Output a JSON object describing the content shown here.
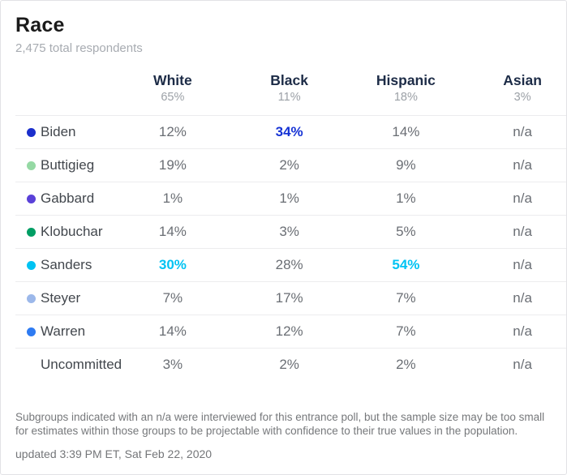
{
  "chart_data": {
    "type": "table",
    "title": "Race",
    "subtitle": "2,475 total respondents",
    "columns": [
      {
        "label": "White",
        "share": "65%"
      },
      {
        "label": "Black",
        "share": "11%"
      },
      {
        "label": "Hispanic",
        "share": "18%"
      },
      {
        "label": "Asian",
        "share": "3%"
      }
    ],
    "rows": [
      {
        "candidate": "Biden",
        "dot_color": "#1b2fcc",
        "values": [
          {
            "text": "12%"
          },
          {
            "text": "34%",
            "highlight": "#1633d5"
          },
          {
            "text": "14%"
          },
          {
            "text": "n/a"
          }
        ]
      },
      {
        "candidate": "Buttigieg",
        "dot_color": "#95d9a4",
        "values": [
          {
            "text": "19%"
          },
          {
            "text": "2%"
          },
          {
            "text": "9%"
          },
          {
            "text": "n/a"
          }
        ]
      },
      {
        "candidate": "Gabbard",
        "dot_color": "#5a41d8",
        "values": [
          {
            "text": "1%"
          },
          {
            "text": "1%"
          },
          {
            "text": "1%"
          },
          {
            "text": "n/a"
          }
        ]
      },
      {
        "candidate": "Klobuchar",
        "dot_color": "#009e64",
        "values": [
          {
            "text": "14%"
          },
          {
            "text": "3%"
          },
          {
            "text": "5%"
          },
          {
            "text": "n/a"
          }
        ]
      },
      {
        "candidate": "Sanders",
        "dot_color": "#00c3f3",
        "values": [
          {
            "text": "30%",
            "highlight": "#00c3f3"
          },
          {
            "text": "28%"
          },
          {
            "text": "54%",
            "highlight": "#00c3f3"
          },
          {
            "text": "n/a"
          }
        ]
      },
      {
        "candidate": "Steyer",
        "dot_color": "#9cb8ea",
        "values": [
          {
            "text": "7%"
          },
          {
            "text": "17%"
          },
          {
            "text": "7%"
          },
          {
            "text": "n/a"
          }
        ]
      },
      {
        "candidate": "Warren",
        "dot_color": "#2e7bf2",
        "values": [
          {
            "text": "14%"
          },
          {
            "text": "12%"
          },
          {
            "text": "7%"
          },
          {
            "text": "n/a"
          }
        ]
      },
      {
        "candidate": "Uncommitted",
        "dot_color": null,
        "values": [
          {
            "text": "3%"
          },
          {
            "text": "2%"
          },
          {
            "text": "2%"
          },
          {
            "text": "n/a"
          }
        ]
      }
    ],
    "footnote": "Subgroups indicated with an n/a were interviewed for this entrance poll, but the sample size may be too small for estimates within those groups to be projectable with confidence to their true values in the population.",
    "updated": "updated 3:39 PM ET, Sat Feb 22, 2020",
    "layout_hints": {
      "highlight_cells_bold": true,
      "na_columns": [
        "Asian"
      ]
    }
  },
  "colors": {
    "header_text": "#1d2c47",
    "biden_highlight": "#1633d5",
    "sanders_highlight": "#00c3f3",
    "value_text": "#6a6e74",
    "muted_text": "#9ca1a7"
  }
}
